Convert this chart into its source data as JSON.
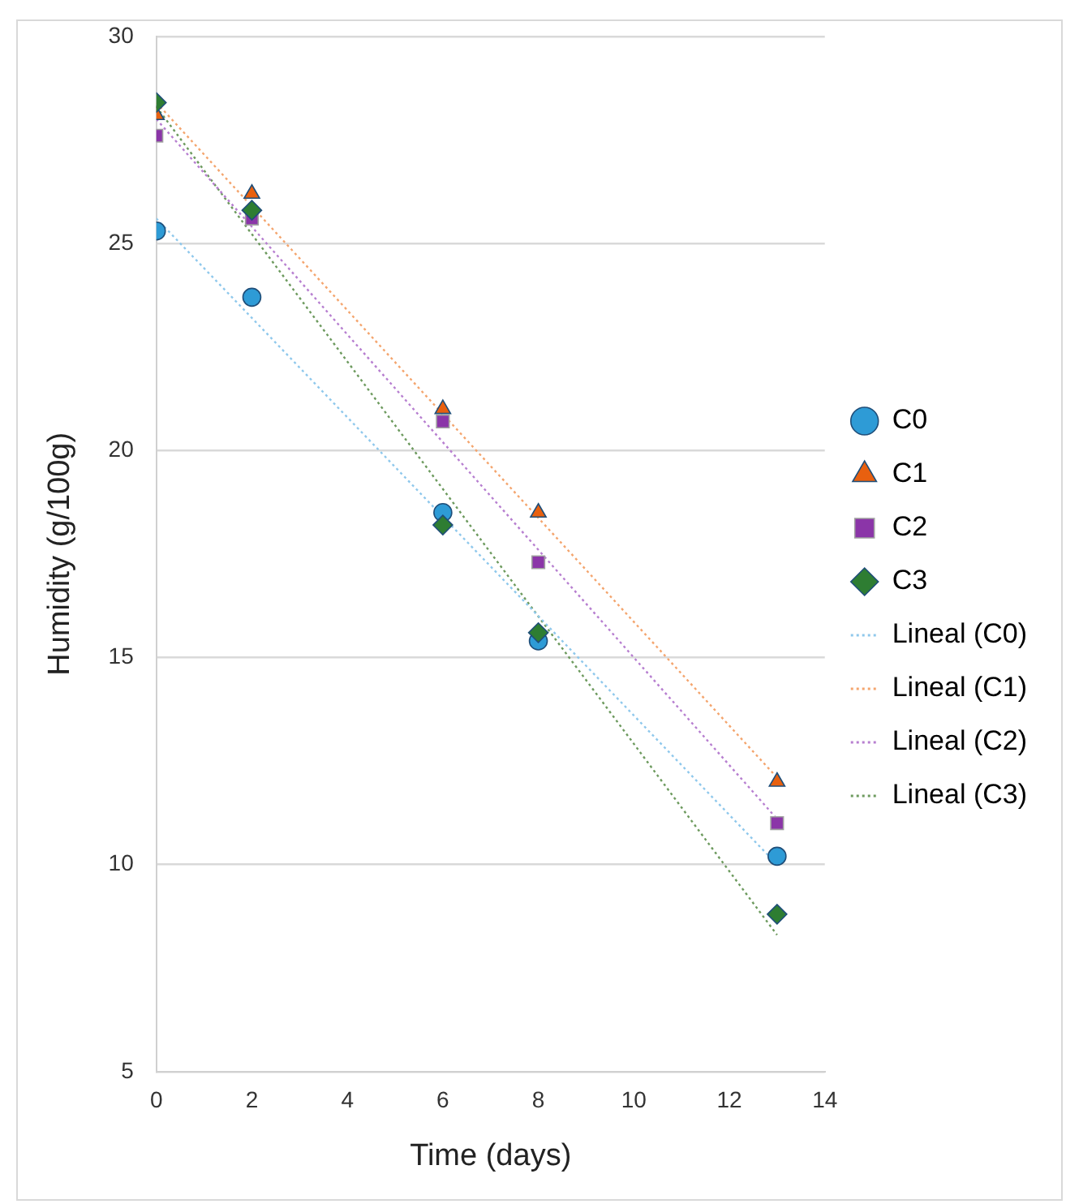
{
  "chart_data": {
    "type": "scatter",
    "xlabel": "Time (days)",
    "ylabel": "Humidity (g/100g)",
    "xlim": [
      0,
      14
    ],
    "xticks": [
      0,
      2,
      4,
      6,
      8,
      10,
      12,
      14
    ],
    "ylim": [
      5,
      30
    ],
    "yticks": [
      5,
      10,
      15,
      20,
      25,
      30
    ],
    "grid": "y",
    "legend": "right",
    "series": [
      {
        "name": "C0",
        "marker": "circle",
        "color": "#2e9bd6",
        "x": [
          0,
          2,
          6,
          8,
          13
        ],
        "values": [
          25.3,
          23.7,
          18.5,
          15.4,
          10.2
        ]
      },
      {
        "name": "C1",
        "marker": "triangle",
        "color": "#e8600f",
        "x": [
          0,
          2,
          6,
          8,
          13
        ],
        "values": [
          28.1,
          26.2,
          21.0,
          18.5,
          12.0
        ]
      },
      {
        "name": "C2",
        "marker": "square",
        "color": "#8b35a8",
        "x": [
          0,
          2,
          6,
          8,
          13
        ],
        "values": [
          27.6,
          25.6,
          20.7,
          17.3,
          11.0
        ]
      },
      {
        "name": "C3",
        "marker": "diamond",
        "color": "#2e7d32",
        "x": [
          0,
          2,
          6,
          8,
          13
        ],
        "values": [
          28.4,
          25.8,
          18.2,
          15.6,
          8.8
        ]
      },
      {
        "name": "Lineal (C0)",
        "type": "line",
        "marker": "none",
        "line_style": "dotted",
        "color": "#8fc8ec",
        "x": [
          0,
          13
        ],
        "values": [
          25.6,
          10.0
        ]
      },
      {
        "name": "Lineal (C1)",
        "type": "line",
        "marker": "none",
        "line_style": "dotted",
        "color": "#f4a56e",
        "x": [
          0,
          13
        ],
        "values": [
          28.4,
          12.1
        ]
      },
      {
        "name": "Lineal (C2)",
        "type": "line",
        "marker": "none",
        "line_style": "dotted",
        "color": "#b77fd0",
        "x": [
          0,
          13
        ],
        "values": [
          28.0,
          11.1
        ]
      },
      {
        "name": "Lineal (C3)",
        "type": "line",
        "marker": "none",
        "line_style": "dotted",
        "color": "#6d9a5e",
        "x": [
          0,
          13
        ],
        "values": [
          28.3,
          8.3
        ]
      }
    ]
  }
}
